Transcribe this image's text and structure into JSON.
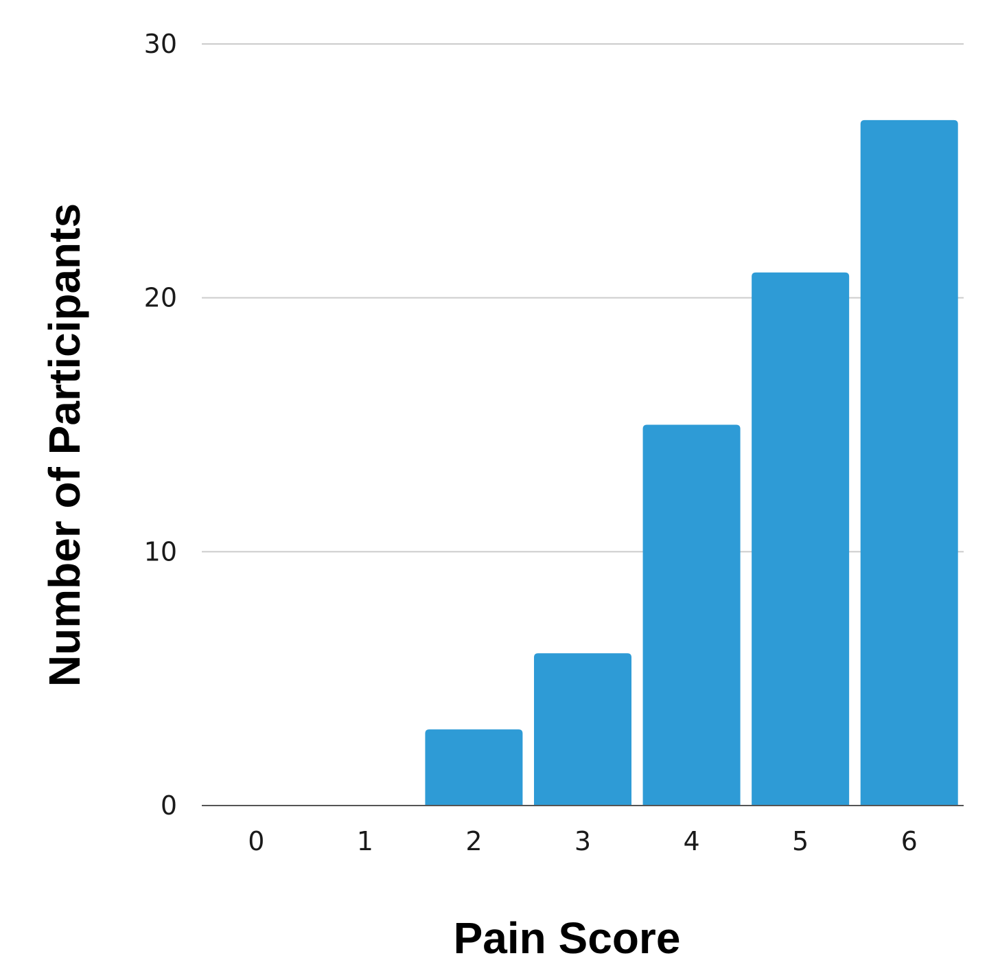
{
  "chart_data": {
    "type": "bar",
    "title": "",
    "xlabel": "Pain Score",
    "ylabel": "Number of Participants",
    "categories": [
      "0",
      "1",
      "2",
      "3",
      "4",
      "5",
      "6"
    ],
    "values": [
      0,
      0,
      3,
      6,
      15,
      21,
      27
    ],
    "ylim": [
      0,
      30
    ],
    "yticks": [
      "0",
      "10",
      "20",
      "30"
    ],
    "grid": true,
    "legend": "none",
    "colors": {
      "bar": "#2e9bd6",
      "grid": "#cccccc",
      "axis": "#555555"
    }
  }
}
